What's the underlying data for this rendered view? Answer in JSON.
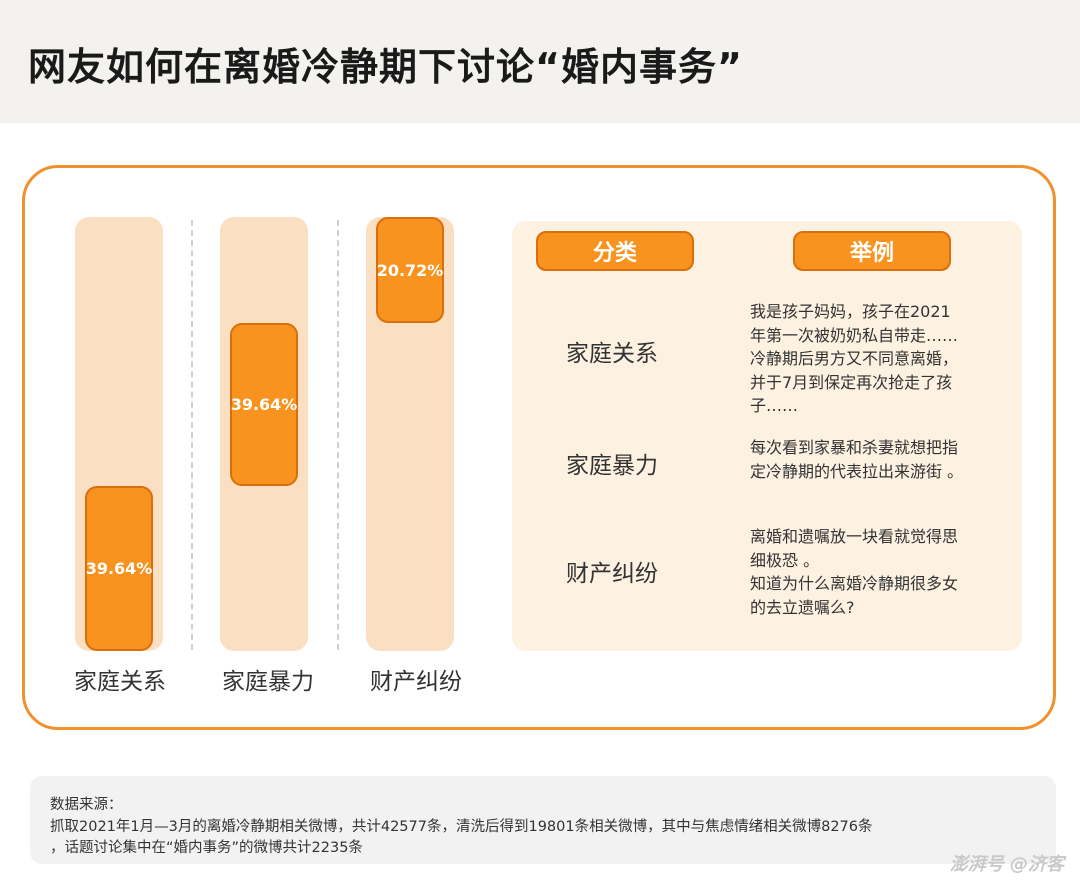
{
  "header": {
    "title": "网友如何在离婚冷静期下讨论“婚内事务”"
  },
  "chart_data": {
    "type": "bar",
    "categories": [
      "家庭关系",
      "家庭暴力",
      "财产纠纷"
    ],
    "value_labels": [
      "39.64%",
      "39.64%",
      "20.72%"
    ],
    "values": [
      39.64,
      39.64,
      20.72
    ],
    "ylim": [
      0,
      100
    ],
    "colors": {
      "segment": "#f7931e",
      "track": "#fbdfc2"
    }
  },
  "table": {
    "headers": {
      "category": "分类",
      "example": "举例"
    },
    "rows": [
      {
        "category": "家庭关系",
        "lines": [
          "我是孩子妈妈，孩子在2021",
          "年第一次被奶奶私自带走……",
          "冷静期后男方又不同意离婚，",
          "并于7月到保定再次抢走了孩",
          "子……"
        ]
      },
      {
        "category": "家庭暴力",
        "lines": [
          "每次看到家暴和杀妻就想把指",
          "定冷静期的代表拉出来游街 。"
        ]
      },
      {
        "category": "财产纠纷",
        "lines": [
          "离婚和遗嘱放一块看就觉得思",
          "细极恐 。",
          "知道为什么离婚冷静期很多女",
          "的去立遗嘱么?"
        ]
      }
    ]
  },
  "note": {
    "line1": "数据来源：",
    "line2": "抓取2021年1月—3月的离婚冷静期相关微博，共计42577条，清洗后得到19801条相关微博，其中与焦虑情绪相关微博8276条",
    "line3": "，话题讨论集中在“婚内事务”的微博共计2235条"
  },
  "watermark": "澎湃号 @济客"
}
